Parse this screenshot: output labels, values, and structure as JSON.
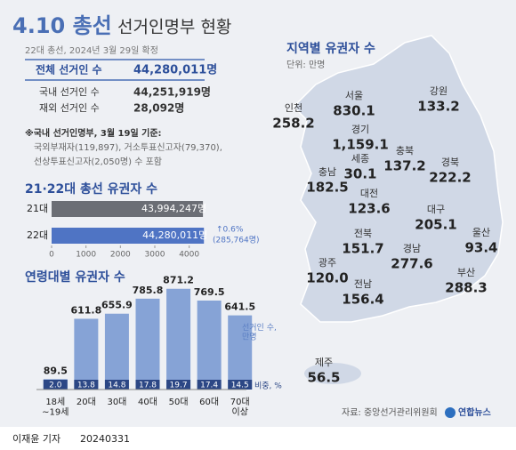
{
  "header": {
    "title_highlight": "4.10 총선",
    "title": "선거인명부 현황",
    "subtitle": "22대 총선, 2024년 3월 29일 확정"
  },
  "voters": {
    "rows": [
      [
        "전체 선거인 수",
        "44,280,011명"
      ],
      [
        "국내 선거인 수",
        "44,251,919명"
      ],
      [
        "재외 선거인 수",
        "28,092명"
      ]
    ]
  },
  "note": [
    "※국내 선거인명부, 3월 19일 기준:",
    "국외부재자(119,897), 거소투표신고자(79,370),",
    "선상투표신고자(2,050명) 수 포함"
  ],
  "chart_data": [
    {
      "type": "barh",
      "title": "21·22대 총선 유권자 수",
      "categories": [
        "21대",
        "22대"
      ],
      "values": [
        4399.4247,
        4428.0011
      ],
      "value_labels": [
        "43,994,247명",
        "44,280,011명"
      ],
      "colors": [
        "#6b6e75",
        "#4f74c4"
      ],
      "xlim": [
        0,
        4500
      ],
      "xticks": [
        0,
        1000,
        2000,
        3000,
        4000
      ],
      "annotation": [
        "↑0.6%",
        "(285,764명)"
      ]
    },
    {
      "type": "bar",
      "title": "연령대별 유권자 수",
      "categories": [
        "18세\n~19세",
        "20대",
        "30대",
        "40대",
        "50대",
        "60대",
        "70대\n이상"
      ],
      "series": [
        {
          "name": "선거인 수,\n만명",
          "color": "#86a3d6",
          "values": [
            89.5,
            611.8,
            655.9,
            785.8,
            871.2,
            769.5,
            641.5
          ]
        },
        {
          "name": "비중, %",
          "color": "#2c4785",
          "values": [
            2,
            13.8,
            14.8,
            17.8,
            19.7,
            17.4,
            14.5
          ],
          "value_labels": [
            "2.0",
            "13.8",
            "14.8",
            "17.8",
            "19.7",
            "17.4",
            "14.5"
          ]
        }
      ],
      "ylim": [
        0,
        950
      ]
    }
  ],
  "map": {
    "title": "지역별 유권자 수",
    "unit": "단위: 만명",
    "regions": [
      {
        "name": "서울",
        "value": 830.1
      },
      {
        "name": "인천",
        "value": 258.2
      },
      {
        "name": "강원",
        "value": 133.2
      },
      {
        "name": "경기",
        "value": 1159.1,
        "label": "1,159.1"
      },
      {
        "name": "충북",
        "value": 137.2
      },
      {
        "name": "세종",
        "value": 30.1
      },
      {
        "name": "충남",
        "value": 182.5
      },
      {
        "name": "대전",
        "value": 123.6
      },
      {
        "name": "경북",
        "value": 222.2
      },
      {
        "name": "대구",
        "value": 205.1
      },
      {
        "name": "전북",
        "value": 151.7
      },
      {
        "name": "울산",
        "value": 93.4
      },
      {
        "name": "광주",
        "value": 120.0,
        "label": "120.0"
      },
      {
        "name": "경남",
        "value": 277.6
      },
      {
        "name": "전남",
        "value": 156.4
      },
      {
        "name": "부산",
        "value": 288.3
      },
      {
        "name": "제주",
        "value": 56.5
      }
    ]
  },
  "footer": {
    "source": "자료: 중앙선거관리위원회",
    "logo": "연합뉴스",
    "byline": "이재윤 기자",
    "date": "20240331"
  }
}
